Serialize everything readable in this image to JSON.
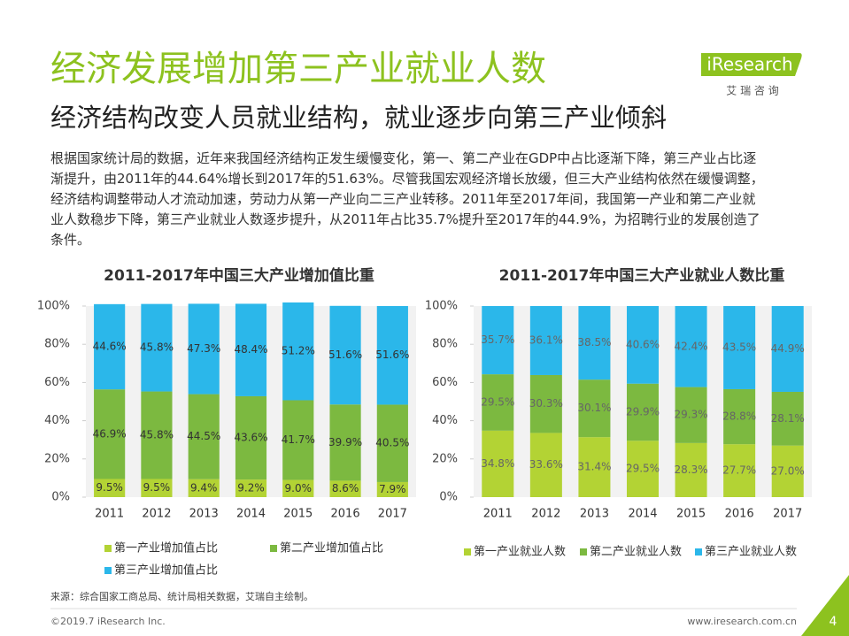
{
  "header": {
    "title": "经济发展增加第三产业就业人数",
    "subtitle": "经济结构改变人员就业结构，就业逐步向第三产业倾斜",
    "logo": "iResearch",
    "logo_cn": "艾 瑞 咨 询"
  },
  "paragraph": [
    "根据国家统计局的数据，近年来我国经济结构正发生缓慢变化，第一、第二产业在GDP中占比逐渐下降，第三产业占比逐",
    "渐提升，由2011年的44.64%增长到2017年的51.63%。尽管我国宏观经济增长放缓，但三大产业结构依然在缓慢调整，",
    "经济结构调整带动人才流动加速，劳动力从第一产业向二三产业转移。2011年至2017年间，我国第一产业和第二产业就",
    "业人数稳步下降，第三产业就业人数逐步提升，从2011年占比35.7%提升至2017年的44.9%，为招聘行业的发展创造了",
    "条件。"
  ],
  "chart_data": [
    {
      "type": "stacked_bar",
      "title": "2011-2017年中国三大产业增加值比重",
      "categories": [
        "2011",
        "2012",
        "2013",
        "2014",
        "2015",
        "2016",
        "2017"
      ],
      "ylim": [
        0,
        100
      ],
      "yticks": [
        {
          "value": 0,
          "label": "0%"
        },
        {
          "value": 20,
          "label": "20%"
        },
        {
          "value": 40,
          "label": "40%"
        },
        {
          "value": 60,
          "label": "60%"
        },
        {
          "value": 80,
          "label": "80%"
        },
        {
          "value": 100,
          "label": "100%"
        }
      ],
      "series": [
        {
          "name": "第一产业增加值占比",
          "color": "#b3d334",
          "values": [
            9.5,
            9.5,
            9.4,
            9.2,
            9.0,
            8.6,
            7.9
          ],
          "value_labels": [
            "9.5%",
            "9.5%",
            "9.4%",
            "9.2%",
            "9.0%",
            "8.6%",
            "7.9%"
          ]
        },
        {
          "name": "第二产业增加值占比",
          "color": "#7cb940",
          "values": [
            46.9,
            45.8,
            44.5,
            43.6,
            41.7,
            39.9,
            40.5
          ],
          "value_labels": [
            "46.9%",
            "45.8%",
            "44.5%",
            "43.6%",
            "41.7%",
            "39.9%",
            "40.5%"
          ]
        },
        {
          "name": "第三产业增加值占比",
          "color": "#2bb7ea",
          "values": [
            44.6,
            45.8,
            47.3,
            48.4,
            51.2,
            51.6,
            51.6
          ],
          "value_labels": [
            "44.6%",
            "45.8%",
            "47.3%",
            "48.4%",
            "51.2%",
            "51.6%",
            "51.6%"
          ]
        }
      ]
    },
    {
      "type": "stacked_bar",
      "title": "2011-2017年中国三大产业就业人数比重",
      "categories": [
        "2011",
        "2012",
        "2013",
        "2014",
        "2015",
        "2016",
        "2017"
      ],
      "ylim": [
        0,
        100
      ],
      "yticks": [
        {
          "value": 0,
          "label": "0%"
        },
        {
          "value": 20,
          "label": "20%"
        },
        {
          "value": 40,
          "label": "40%"
        },
        {
          "value": 60,
          "label": "60%"
        },
        {
          "value": 80,
          "label": "80%"
        },
        {
          "value": 100,
          "label": "100%"
        }
      ],
      "series": [
        {
          "name": "第一产业就业人数",
          "color": "#b3d334",
          "values": [
            34.8,
            33.6,
            31.4,
            29.5,
            28.3,
            27.7,
            27.0
          ],
          "value_labels": [
            "34.8%",
            "33.6%",
            "31.4%",
            "29.5%",
            "28.3%",
            "27.7%",
            "27.0%"
          ]
        },
        {
          "name": "第二产业就业人数",
          "color": "#7cb940",
          "values": [
            29.5,
            30.3,
            30.1,
            29.9,
            29.3,
            28.8,
            28.1
          ],
          "value_labels": [
            "29.5%",
            "30.3%",
            "30.1%",
            "29.9%",
            "29.3%",
            "28.8%",
            "28.1%"
          ]
        },
        {
          "name": "第三产业就业人数",
          "color": "#2bb7ea",
          "values": [
            35.7,
            36.1,
            38.5,
            40.6,
            42.4,
            43.5,
            44.9
          ],
          "value_labels": [
            "35.7%",
            "36.1%",
            "38.5%",
            "40.6%",
            "42.4%",
            "43.5%",
            "44.9%"
          ]
        }
      ]
    }
  ],
  "source": "来源：综合国家工商总局、统计局相关数据，艾瑞自主绘制。",
  "footer": {
    "copyright": "©2019.7 iResearch Inc.",
    "website": "www.iresearch.com.cn",
    "page": "4"
  }
}
